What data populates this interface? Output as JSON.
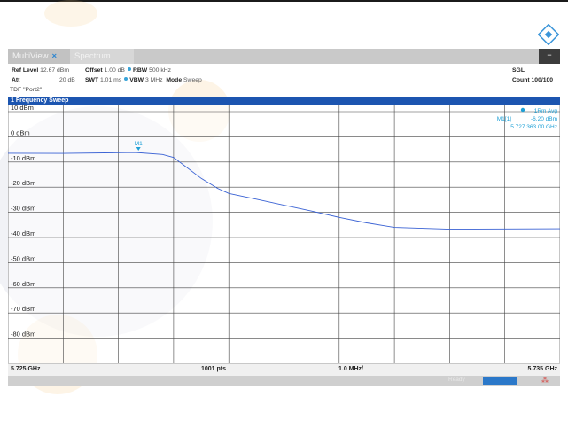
{
  "tabs": [
    {
      "label": "MultiView",
      "close": "×"
    },
    {
      "label": "Spectrum"
    }
  ],
  "menu_icon": "menu-icon",
  "params": {
    "ref_level_label": "Ref Level",
    "ref_level_value": "12.67 dBm",
    "offset_label": "Offset",
    "offset_value": "1.00 dB",
    "rbw_label": "RBW",
    "rbw_value": "500 kHz",
    "att_label": "Att",
    "att_value": "20 dB",
    "swt_label": "SWT",
    "swt_value": "1.01 ms",
    "vbw_label": "VBW",
    "vbw_value": "3 MHz",
    "mode_label": "Mode",
    "mode_value": "Sweep",
    "sgl": "SGL",
    "count": "Count 100/100",
    "tdf": "TDF \"Port2\""
  },
  "window_title": "1 Frequency Sweep",
  "trace_label": "1Rm Avg",
  "marker_readout": {
    "name": "M1[1]",
    "level": "-6.20 dBm",
    "freq": "5.727 363 00 GHz"
  },
  "marker_label": "M1",
  "colors": {
    "accent": "#1c55b0",
    "trace": "#3a62d4",
    "marker": "#1ea0d6",
    "status_warn": "#d63a36"
  },
  "chart_data": {
    "type": "line",
    "x_start": "5.725 GHz",
    "x_stop": "5.735 GHz",
    "points_label": "1001 pts",
    "span_label": "1.0 MHz/",
    "xlim": [
      5.725,
      5.735
    ],
    "ylim": [
      -90,
      12.67
    ],
    "ytick_labels": [
      "10 dBm",
      "0 dBm",
      "-10 dBm",
      "-20 dBm",
      "-30 dBm",
      "-40 dBm",
      "-50 dBm",
      "-60 dBm",
      "-70 dBm",
      "-80 dBm"
    ],
    "ytick_values": [
      10,
      0,
      -10,
      -20,
      -30,
      -40,
      -50,
      -60,
      -70,
      -80
    ],
    "grid": true,
    "series": [
      {
        "x": [
          5.725,
          5.726,
          5.727,
          5.7273,
          5.7278,
          5.728,
          5.7282,
          5.7285,
          5.7288,
          5.729,
          5.7295,
          5.73,
          5.7305,
          5.731,
          5.7315,
          5.732,
          5.733,
          5.734,
          5.735
        ],
        "y": [
          -6.5,
          -6.6,
          -6.3,
          -6.2,
          -7.0,
          -8.2,
          -11.5,
          -16.5,
          -20.5,
          -22.5,
          -24.8,
          -27.2,
          -29.5,
          -32.0,
          -34.2,
          -36.0,
          -36.7,
          -36.6,
          -36.5
        ]
      }
    ],
    "marker": {
      "x": 5.727363,
      "y": -6.2
    }
  },
  "status": {
    "text": "Ready"
  }
}
